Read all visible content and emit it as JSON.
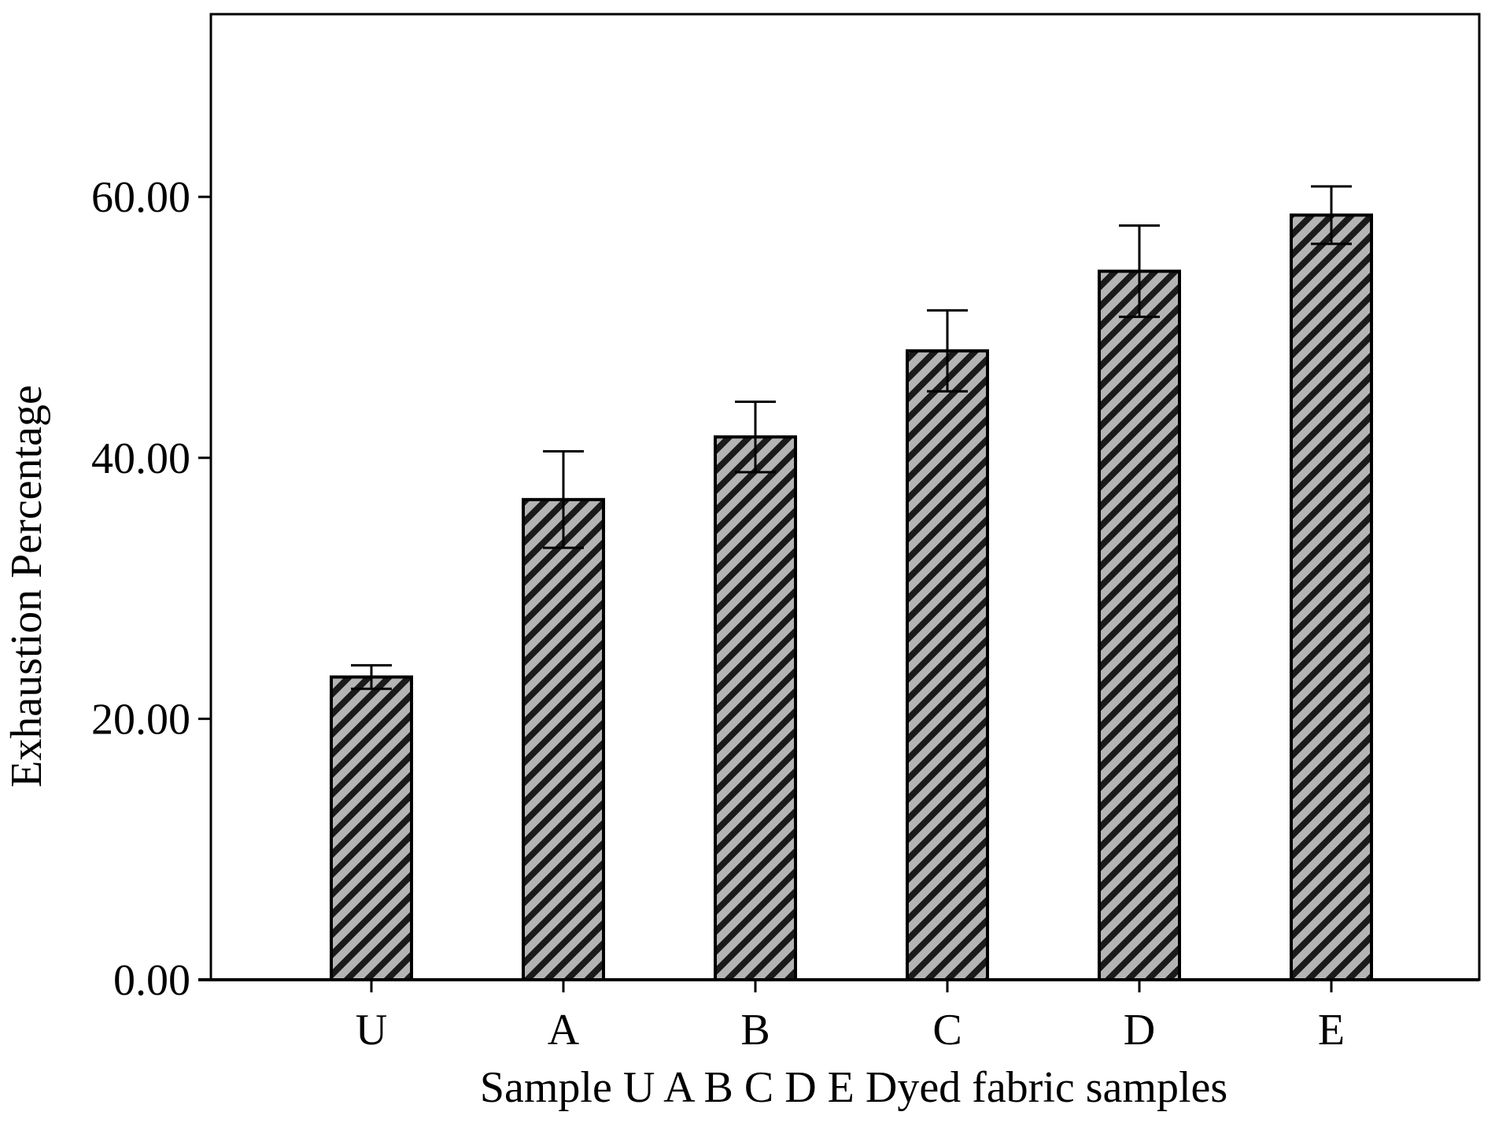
{
  "chart_data": {
    "type": "bar",
    "title": "",
    "xlabel": "Sample U A B C D E Dyed fabric samples",
    "ylabel": "Exhaustion Percentage",
    "categories": [
      "U",
      "A",
      "B",
      "C",
      "D",
      "E"
    ],
    "values": [
      23.2,
      36.8,
      41.6,
      48.2,
      54.3,
      58.6
    ],
    "error": [
      0.9,
      3.7,
      2.7,
      3.1,
      3.5,
      2.2
    ],
    "ylim": [
      0,
      74
    ],
    "yticks": [
      0,
      20,
      40,
      60
    ],
    "ytick_labels": [
      "0.00",
      "20.00",
      "40.00",
      "60.00"
    ],
    "bar_pattern": "diagonal-hatch",
    "bar_fill_color": "#b4b4b4",
    "hatch_color": "#1a1a1a",
    "grid": false,
    "legend": "none"
  }
}
